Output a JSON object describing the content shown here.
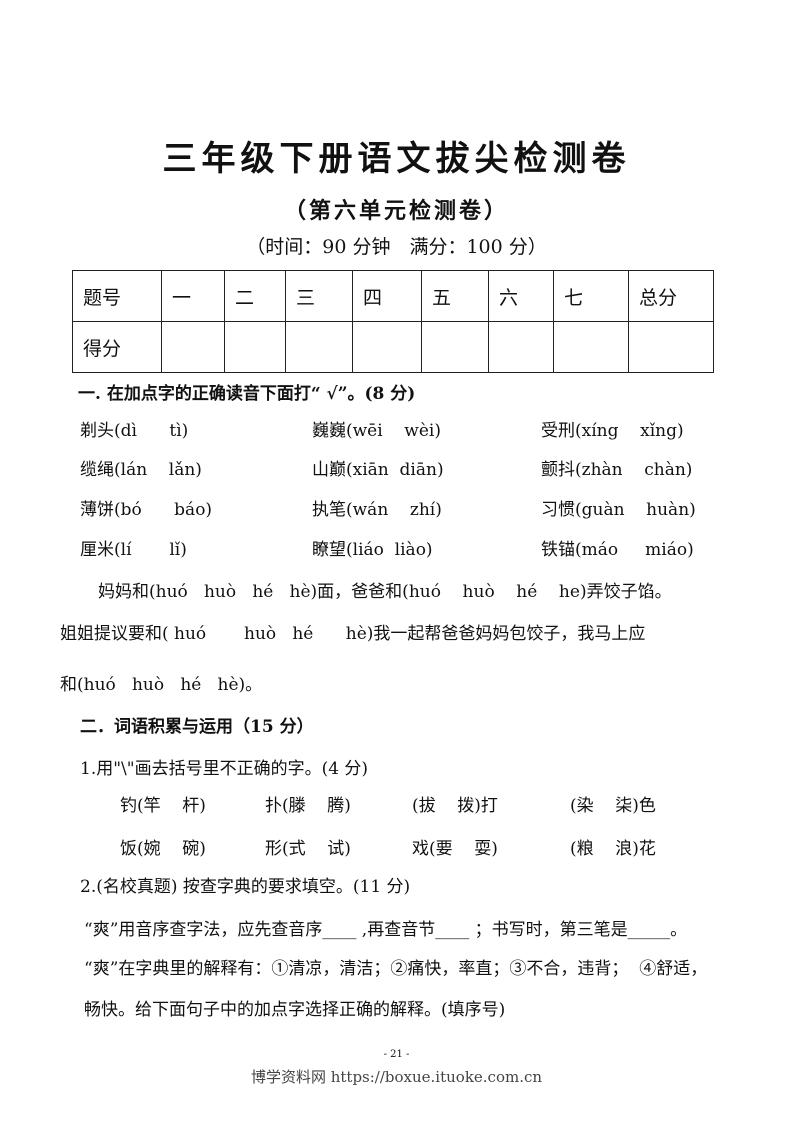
{
  "title": "三年级下册语文拔尖检测卷",
  "subtitle": "（第六单元检测卷）",
  "info": "（时间：90 分钟　满分：100 分）",
  "score_table": {
    "header": [
      "题号",
      "一",
      "二",
      "三",
      "四",
      "五",
      "六",
      "七",
      "总分"
    ],
    "row": [
      "得分"
    ]
  },
  "section1": {
    "title": "一. 在加点字的正确读音下面打“ √”。(8 分)",
    "items": [
      [
        "剃头(dì      tì)",
        "巍巍(wēi    wèi)",
        "受刑(xíng    xǐng)"
      ],
      [
        "缆绳(lán    lǎn)",
        "山巅(xiān  diān)",
        "颤抖(zhàn    chàn)"
      ],
      [
        "薄饼(bó      báo)",
        "执笔(wán    zhí)",
        "习惯(guàn    huàn)"
      ],
      [
        "厘米(lí       lǐ)",
        "瞭望(liáo  liào)",
        "铁锚(máo     miáo)"
      ]
    ],
    "paragraph": [
      "妈妈和(huó   huò   hé   hè)面，爸爸和(huó    huò    hé    he)弄饺子馅。",
      "姐姐提议要和( huó       huò   hé      hè)我一起帮爸爸妈妈包饺子，我马上应",
      "和(huó   huò   hé   hè)。"
    ]
  },
  "section2": {
    "title": "二．词语积累与运用（15 分）",
    "q1": {
      "title": "1.用\"\\\"画去括号里不正确的字。(4 分)",
      "rows": [
        [
          "钓(竿    杆)",
          "扑(滕    腾)",
          "(拔    拨)打",
          "(染    柒)色"
        ],
        [
          "饭(婉    碗)",
          "形(式    试)",
          "戏(要    耍)",
          "(粮    浪)花"
        ]
      ]
    },
    "q2": {
      "title": "2.(名校真题) 按查字典的要求填空。(11 分)",
      "lines": [
        "“爽”用音序查字法，应先查音序____ ,再查音节____ ；书写时，第三笔是_____。",
        "“爽”在字典里的解释有：①清凉，清洁；②痛快，率直；③不合，违背；  ④舒适，",
        "畅快。给下面句子中的加点字选择正确的解释。(填序号)"
      ]
    }
  },
  "footer": {
    "page": "- 21 -",
    "watermark": "博学资料网 https://boxue.ituoke.com.cn"
  }
}
